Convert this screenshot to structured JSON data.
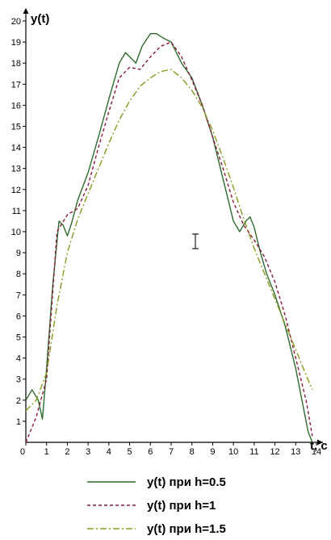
{
  "chart_data": {
    "type": "line",
    "xlabel": "t, c",
    "ylabel": "y(t)",
    "xlim": [
      0,
      14
    ],
    "ylim": [
      0,
      20
    ],
    "x_ticks": [
      "0",
      "1",
      "2",
      "3",
      "4",
      "5",
      "6",
      "7",
      "8",
      "9",
      "10",
      "11",
      "12",
      "13",
      "14"
    ],
    "y_ticks": [
      "1",
      "2",
      "3",
      "4",
      "5",
      "6",
      "7",
      "8",
      "9",
      "10",
      "11",
      "12",
      "13",
      "14",
      "15",
      "16",
      "17",
      "18",
      "19",
      "20"
    ],
    "grid": false,
    "legend_position": "bottom",
    "series": [
      {
        "name": "y(t) при h=0.5",
        "color": "#2e6b2e",
        "style": "solid",
        "x": [
          0,
          0.3,
          0.6,
          0.8,
          1.0,
          1.3,
          1.6,
          1.8,
          2.0,
          2.2,
          2.5,
          3.0,
          3.5,
          4.0,
          4.5,
          4.8,
          5.0,
          5.3,
          5.6,
          6.0,
          6.3,
          6.6,
          7.0,
          7.5,
          8.0,
          8.5,
          9.0,
          9.5,
          10.0,
          10.3,
          10.6,
          10.8,
          11.0,
          11.3,
          11.6,
          12.0,
          12.5,
          13.0,
          13.3,
          13.6,
          13.8
        ],
        "y": [
          2.0,
          2.5,
          2.0,
          1.1,
          3.5,
          7.5,
          10.5,
          10.3,
          9.8,
          10.4,
          11.5,
          12.8,
          14.5,
          16.3,
          18.0,
          18.5,
          18.3,
          18.0,
          18.8,
          19.4,
          19.4,
          19.2,
          19.0,
          18.0,
          17.3,
          16.0,
          14.5,
          12.5,
          10.5,
          10.0,
          10.5,
          10.7,
          10.2,
          9.0,
          8.0,
          7.0,
          5.5,
          3.5,
          2.0,
          0.5,
          0.0
        ]
      },
      {
        "name": "y(t) при h=1",
        "color": "#8b1a3a",
        "style": "dashed",
        "x": [
          0,
          0.5,
          1.0,
          1.5,
          2.0,
          2.5,
          3.0,
          3.5,
          4.0,
          4.5,
          5.0,
          5.5,
          6.0,
          6.5,
          7.0,
          7.5,
          8.0,
          8.5,
          9.0,
          9.5,
          10.0,
          10.5,
          11.0,
          11.5,
          12.0,
          12.5,
          13.0,
          13.5,
          13.8
        ],
        "y": [
          0.0,
          1.2,
          3.0,
          10.0,
          10.8,
          11.1,
          12.2,
          14.0,
          15.7,
          17.3,
          17.8,
          17.7,
          18.3,
          18.8,
          19.0,
          18.3,
          17.2,
          16.0,
          14.5,
          13.0,
          11.4,
          10.3,
          9.6,
          8.8,
          7.6,
          6.0,
          4.0,
          2.0,
          0.3
        ]
      },
      {
        "name": "y(t) при h=1.5",
        "color": "#8a9a20",
        "style": "dashdot",
        "x": [
          0,
          0.5,
          1.0,
          1.5,
          2.0,
          2.5,
          3.0,
          3.5,
          4.0,
          4.5,
          5.0,
          5.5,
          6.0,
          6.5,
          7.0,
          7.5,
          8.0,
          8.5,
          9.0,
          9.5,
          10.0,
          10.5,
          11.0,
          11.5,
          12.0,
          12.5,
          13.0,
          13.5,
          13.8
        ],
        "y": [
          1.5,
          2.0,
          3.3,
          6.5,
          9.0,
          10.6,
          11.8,
          13.0,
          14.2,
          15.3,
          16.2,
          16.9,
          17.3,
          17.6,
          17.7,
          17.3,
          16.7,
          15.9,
          14.8,
          13.5,
          12.1,
          10.6,
          9.2,
          8.0,
          6.8,
          5.6,
          4.4,
          3.2,
          2.5
        ]
      }
    ]
  }
}
